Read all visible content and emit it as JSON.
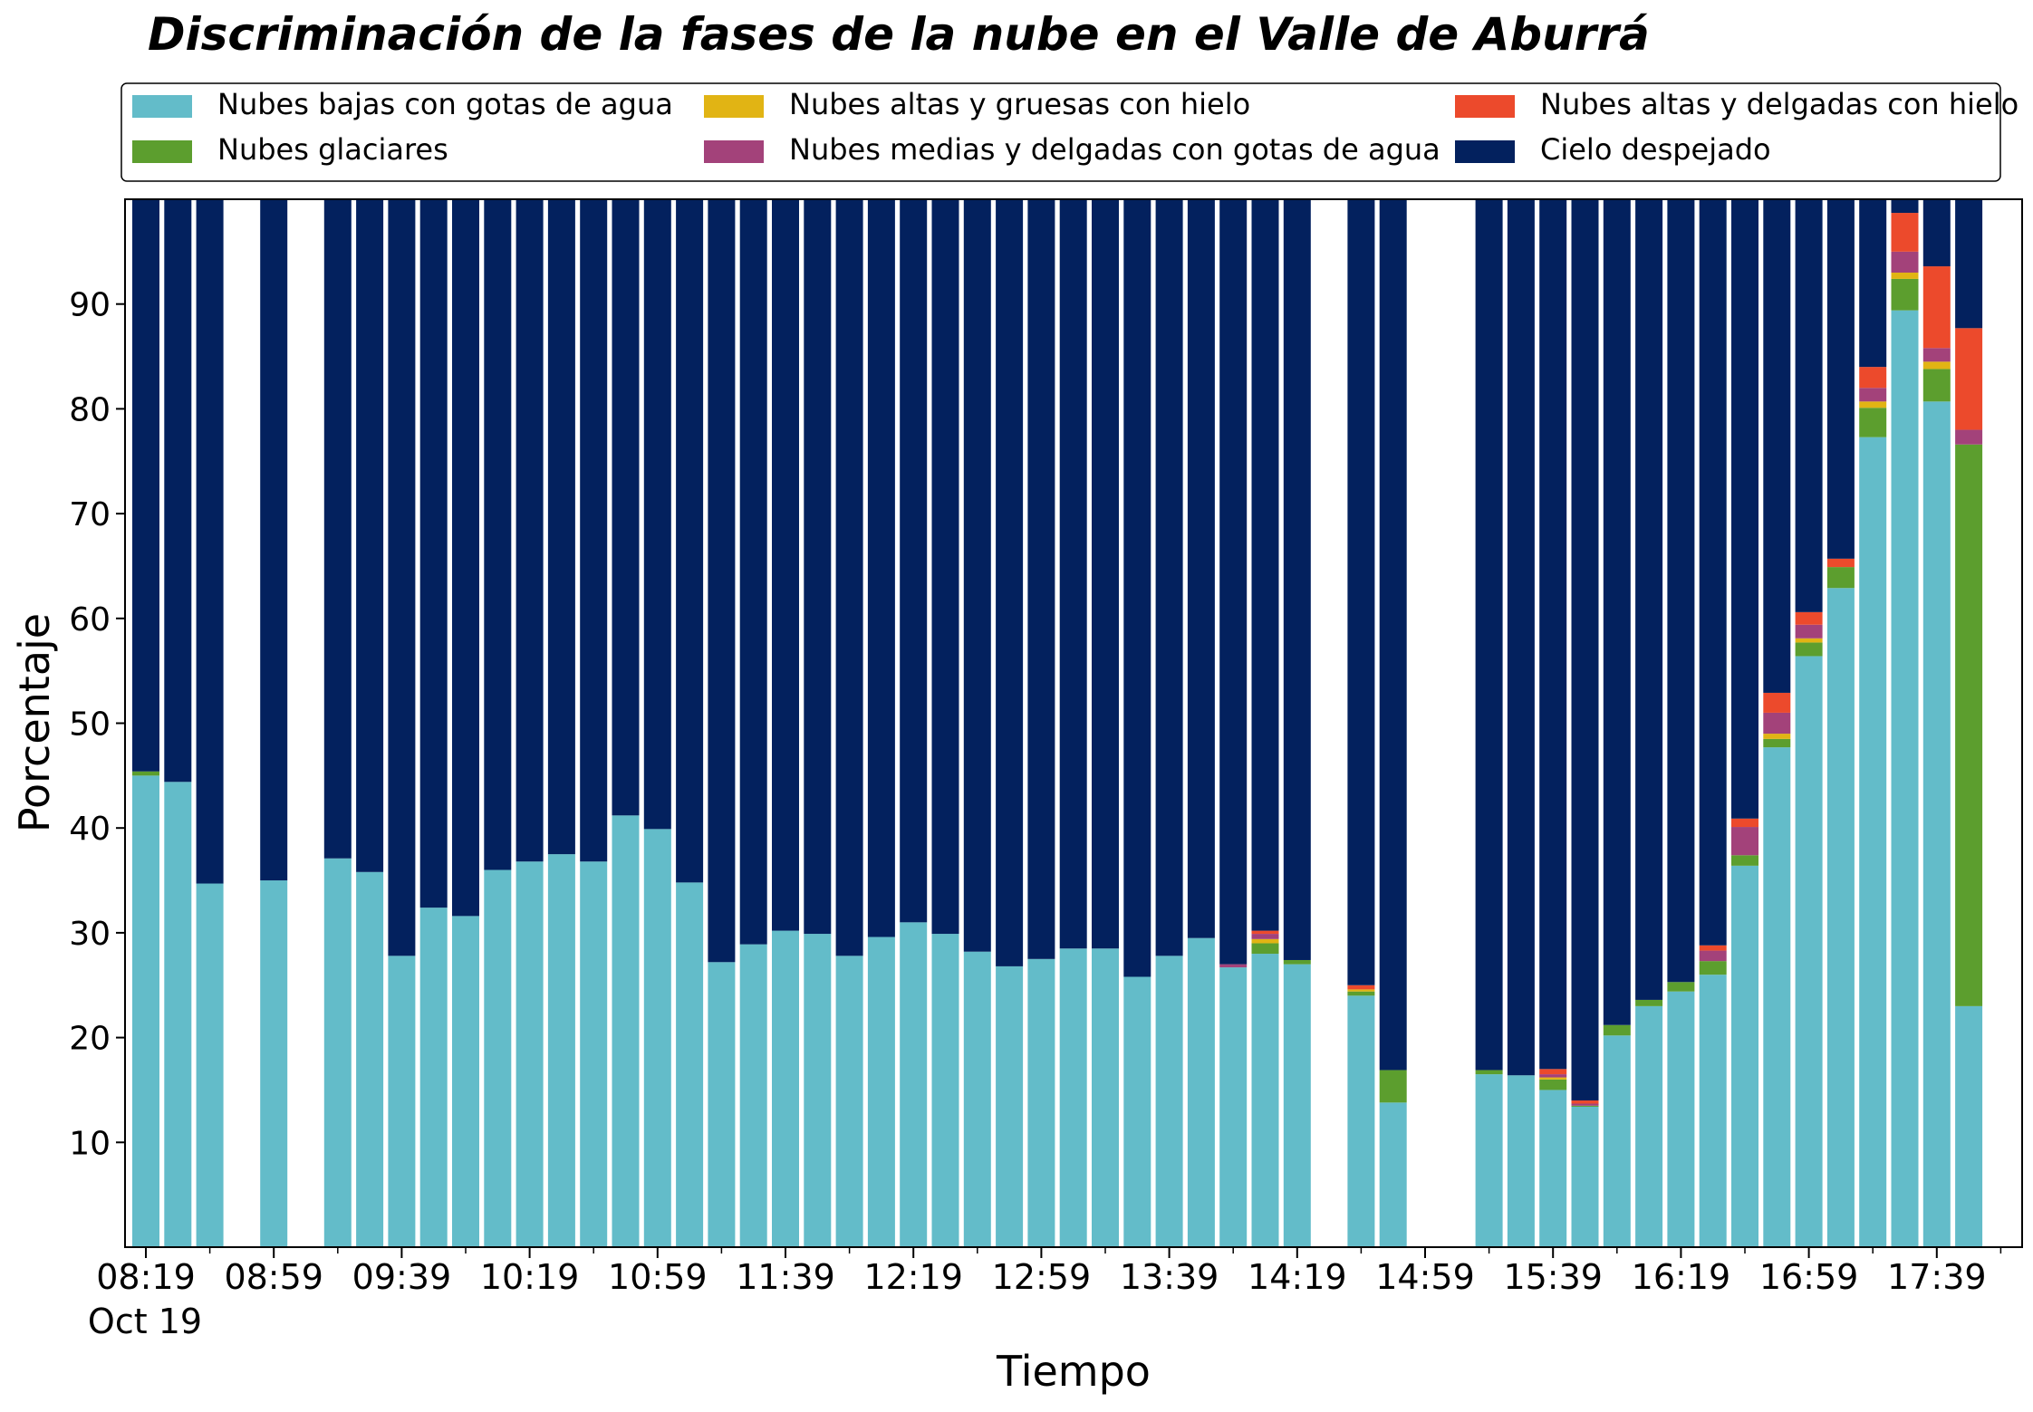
{
  "chart_data": {
    "type": "bar",
    "stacked": true,
    "title": "Discriminación de la fases de la nube en el Valle de Aburrá",
    "xlabel": "Tiempo",
    "ylabel": "Porcentaje",
    "ylim": [
      0,
      100
    ],
    "yticks": [
      10,
      20,
      30,
      40,
      50,
      60,
      70,
      80,
      90
    ],
    "xtick_labels": [
      "08:19",
      "08:59",
      "09:39",
      "10:19",
      "10:59",
      "11:39",
      "12:19",
      "12:59",
      "13:39",
      "14:19",
      "14:59",
      "15:39",
      "16:19",
      "16:59",
      "17:39"
    ],
    "xtick_sublabel": "Oct 19",
    "legend_placement": "top",
    "grid": false,
    "categories": [
      "08:19",
      "08:29",
      "08:39",
      "08:49",
      "08:59",
      "09:09",
      "09:19",
      "09:29",
      "09:39",
      "09:49",
      "09:59",
      "10:09",
      "10:19",
      "10:29",
      "10:39",
      "10:49",
      "10:59",
      "11:09",
      "11:19",
      "11:29",
      "11:39",
      "11:49",
      "11:59",
      "12:09",
      "12:19",
      "12:29",
      "12:39",
      "12:49",
      "12:59",
      "13:09",
      "13:19",
      "13:29",
      "13:39",
      "13:49",
      "13:59",
      "14:09",
      "14:19",
      "14:29",
      "14:39",
      "14:49",
      "14:59",
      "15:09",
      "15:19",
      "15:29",
      "15:39",
      "15:49",
      "15:59",
      "16:09",
      "16:19",
      "16:29",
      "16:39",
      "16:49",
      "16:59",
      "17:09",
      "17:19",
      "17:29",
      "17:39",
      "17:49"
    ],
    "series": [
      {
        "name": "Nubes bajas con gotas de agua",
        "color": "#63bcc9",
        "values": [
          45,
          44.4,
          34.7,
          null,
          35,
          null,
          37.1,
          35.8,
          27.8,
          32.4,
          31.6,
          36,
          36.8,
          37.5,
          36.8,
          41.2,
          39.9,
          34.8,
          27.2,
          28.9,
          30.2,
          29.9,
          27.8,
          29.6,
          31,
          29.9,
          28.2,
          26.8,
          27.5,
          28.5,
          28.5,
          25.8,
          27.8,
          29.5,
          26.7,
          28,
          27,
          null,
          24,
          13.8,
          null,
          null,
          16.5,
          16.4,
          15,
          13.4,
          20.2,
          23,
          24.4,
          26,
          36.4,
          47.7,
          56.4,
          62.9,
          77.3,
          89.4,
          80.7,
          23
        ]
      },
      {
        "name": "Nubes glaciares",
        "color": "#5c9e2e",
        "values": [
          0.4,
          0,
          0,
          null,
          0,
          null,
          0,
          0,
          0,
          0,
          0,
          0,
          0,
          0,
          0,
          0,
          0,
          0,
          0,
          0,
          0,
          0,
          0,
          0,
          0,
          0,
          0,
          0,
          0,
          0,
          0,
          0,
          0,
          0,
          0,
          1,
          0.4,
          null,
          0.4,
          3.1,
          null,
          null,
          0.4,
          0,
          1,
          0.1,
          1,
          0.6,
          0.9,
          1.3,
          1,
          0.8,
          1.3,
          2,
          2.8,
          3,
          3.1,
          53.6
        ]
      },
      {
        "name": "Nubes altas y gruesas con hielo",
        "color": "#e1b414",
        "values": [
          0,
          0,
          0,
          null,
          0,
          null,
          0,
          0,
          0,
          0,
          0,
          0,
          0,
          0,
          0,
          0,
          0,
          0,
          0,
          0,
          0,
          0,
          0,
          0,
          0,
          0,
          0,
          0,
          0,
          0,
          0,
          0,
          0,
          0,
          0,
          0.4,
          0,
          null,
          0.2,
          0,
          null,
          null,
          0,
          0,
          0.2,
          0,
          0,
          0,
          0,
          0,
          0,
          0.5,
          0.4,
          0,
          0.6,
          0.6,
          0.7,
          0
        ]
      },
      {
        "name": "Nubes medias y delgadas con gotas de agua",
        "color": "#a3427a",
        "values": [
          0,
          0,
          0,
          null,
          0,
          null,
          0,
          0,
          0,
          0,
          0,
          0,
          0,
          0,
          0,
          0,
          0,
          0,
          0,
          0,
          0,
          0,
          0,
          0,
          0,
          0,
          0,
          0,
          0,
          0,
          0,
          0,
          0,
          0,
          0.3,
          0.5,
          0,
          null,
          0,
          0,
          null,
          0,
          0,
          0,
          0.3,
          0.2,
          0,
          0,
          0,
          1,
          2.7,
          2,
          1.3,
          0,
          1.3,
          2,
          1.3,
          1.4
        ]
      },
      {
        "name": "Nubes altas y delgadas con hielo",
        "color": "#ec4a2c",
        "values": [
          0,
          0,
          0,
          null,
          0,
          null,
          0,
          0,
          0,
          0,
          0,
          0,
          0,
          0,
          0,
          0,
          0,
          0,
          0,
          0,
          0,
          0,
          0,
          0,
          0,
          0,
          0,
          0,
          0,
          0,
          0,
          0,
          0,
          0,
          0,
          0.3,
          0,
          null,
          0.4,
          0,
          null,
          null,
          0,
          0,
          0.5,
          0.3,
          0,
          0,
          0,
          0.5,
          0.8,
          1.9,
          1.2,
          0.8,
          2,
          3.7,
          7.8,
          9.7
        ]
      },
      {
        "name": "Cielo despejado",
        "color": "#03215e",
        "values": [
          54.6,
          55.6,
          65.3,
          null,
          65,
          null,
          62.9,
          64.2,
          72.2,
          67.6,
          68.4,
          64,
          63.2,
          62.5,
          63.2,
          58.8,
          60.1,
          65.2,
          72.8,
          71.1,
          69.8,
          70.1,
          72.2,
          70.4,
          69,
          70.1,
          71.8,
          73.2,
          72.5,
          71.5,
          71.5,
          74.2,
          72.2,
          70.5,
          73,
          69.8,
          72.6,
          null,
          75,
          83.1,
          null,
          null,
          83.1,
          83.6,
          83,
          86,
          78.8,
          76.4,
          74.7,
          71.2,
          59.1,
          47.1,
          39.4,
          34.3,
          16,
          1.3,
          6.4,
          12.3
        ]
      }
    ]
  }
}
